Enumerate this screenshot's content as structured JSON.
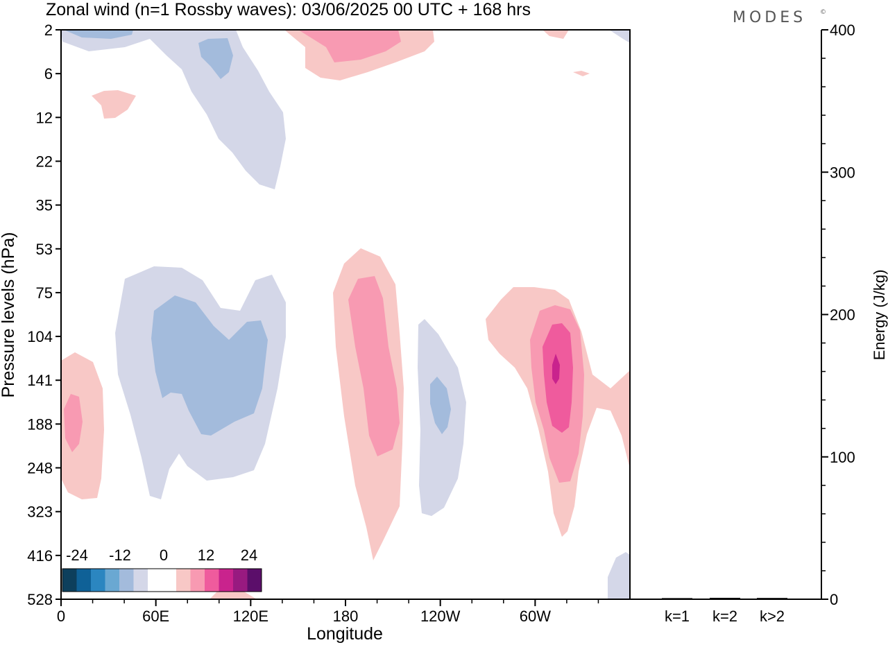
{
  "title": "Zonal wind (n=1 Rossby waves):  03/06/2025  00 UTC  + 168 hrs",
  "logo": "MODES",
  "logo_mark": "©",
  "chart_data": [
    {
      "type": "heatmap",
      "title": "Zonal wind (n=1 Rossby waves):  03/06/2025  00 UTC  + 168 hrs",
      "xlabel": "Longitude",
      "ylabel": "Pressure levels (hPa)",
      "x_ticks": [
        "0",
        "60E",
        "120E",
        "180",
        "120W",
        "60W"
      ],
      "y_ticks": [
        "2",
        "6",
        "12",
        "22",
        "35",
        "53",
        "75",
        "104",
        "141",
        "188",
        "248",
        "323",
        "416",
        "528"
      ],
      "colorbar": {
        "labels": [
          "-24",
          "-12",
          "0",
          "12",
          "24"
        ],
        "colors": [
          "#0d3f5c",
          "#0f6197",
          "#2b86c0",
          "#6aa8d2",
          "#a3bbdc",
          "#d4d7e8",
          "#ffffff",
          "#ffffff",
          "#f8c8c6",
          "#f89ab2",
          "#ef5b9d",
          "#c9238d",
          "#981a80",
          "#5b0e6a"
        ]
      },
      "grid": false
    },
    {
      "type": "bar",
      "ylabel": "Energy (J/kg)",
      "categories": [
        "k=1",
        "k=2",
        "k>2"
      ],
      "values": [
        0.3,
        0.5,
        0.4
      ],
      "ylim": [
        0,
        400
      ],
      "y_ticks": [
        "0",
        "100",
        "200",
        "300",
        "400"
      ]
    }
  ]
}
